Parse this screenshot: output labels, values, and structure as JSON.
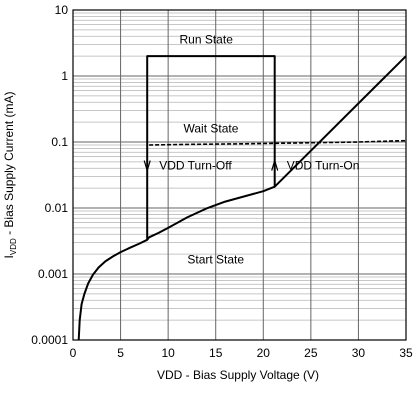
{
  "chart_data": {
    "type": "line",
    "xlabel": "VDD - Bias Supply Voltage (V)",
    "ylabel_prefix": "I",
    "ylabel_sub": "VDD",
    "ylabel_suffix": " - Bias Supply Current (mA)",
    "xlim": [
      0,
      35
    ],
    "ylim": [
      0.0001,
      10
    ],
    "yscale": "log",
    "grid": true,
    "x_ticks": [
      0,
      5,
      10,
      15,
      20,
      25,
      30,
      35
    ],
    "x_tick_labels": [
      "0",
      "5",
      "10",
      "15",
      "20",
      "25",
      "30",
      "35"
    ],
    "y_ticks": [
      0.0001,
      0.001,
      0.01,
      0.1,
      1,
      10
    ],
    "y_tick_labels": [
      "0.0001",
      "0.001",
      "0.01",
      "0.1",
      "1",
      "10"
    ],
    "series": [
      {
        "style": "solid",
        "x": [
          0.6,
          0.7,
          0.9,
          1.2,
          1.6,
          2.1,
          2.7,
          3.4,
          4.2,
          5.0,
          6.0,
          7.0,
          7.8,
          8.0,
          9.0,
          10.0,
          12.0,
          14.0,
          16.0,
          18.0,
          20.0,
          21.2
        ],
        "y": [
          0.0001,
          0.0002,
          0.00035,
          0.0005,
          0.00072,
          0.00098,
          0.00126,
          0.00155,
          0.00185,
          0.00215,
          0.0025,
          0.0029,
          0.0033,
          0.0036,
          0.0042,
          0.005,
          0.0072,
          0.0098,
          0.0125,
          0.015,
          0.018,
          0.021
        ]
      },
      {
        "style": "solid",
        "x": [
          7.8,
          7.8,
          21.2,
          21.2,
          35
        ],
        "y": [
          0.0033,
          2.0,
          2.0,
          0.021,
          2.0
        ]
      },
      {
        "style": "dashed",
        "x": [
          8.0,
          12.0,
          18.0,
          24.0,
          30.0,
          35.0
        ],
        "y": [
          0.09,
          0.092,
          0.094,
          0.097,
          0.1,
          0.105
        ]
      }
    ],
    "annotations": [
      {
        "text": "Run State",
        "x": 14.0,
        "y": 3.6
      },
      {
        "text": "Wait State",
        "x": 14.5,
        "y": 0.16
      },
      {
        "text": "VDD Turn-Off",
        "x": 7.8,
        "y": 0.044,
        "arrow": "down",
        "text_side": "right"
      },
      {
        "text": "VDD Turn-On",
        "x": 21.2,
        "y": 0.044,
        "arrow": "up",
        "text_side": "right"
      },
      {
        "text": "Start State",
        "x": 15.0,
        "y": 0.00165
      }
    ]
  }
}
